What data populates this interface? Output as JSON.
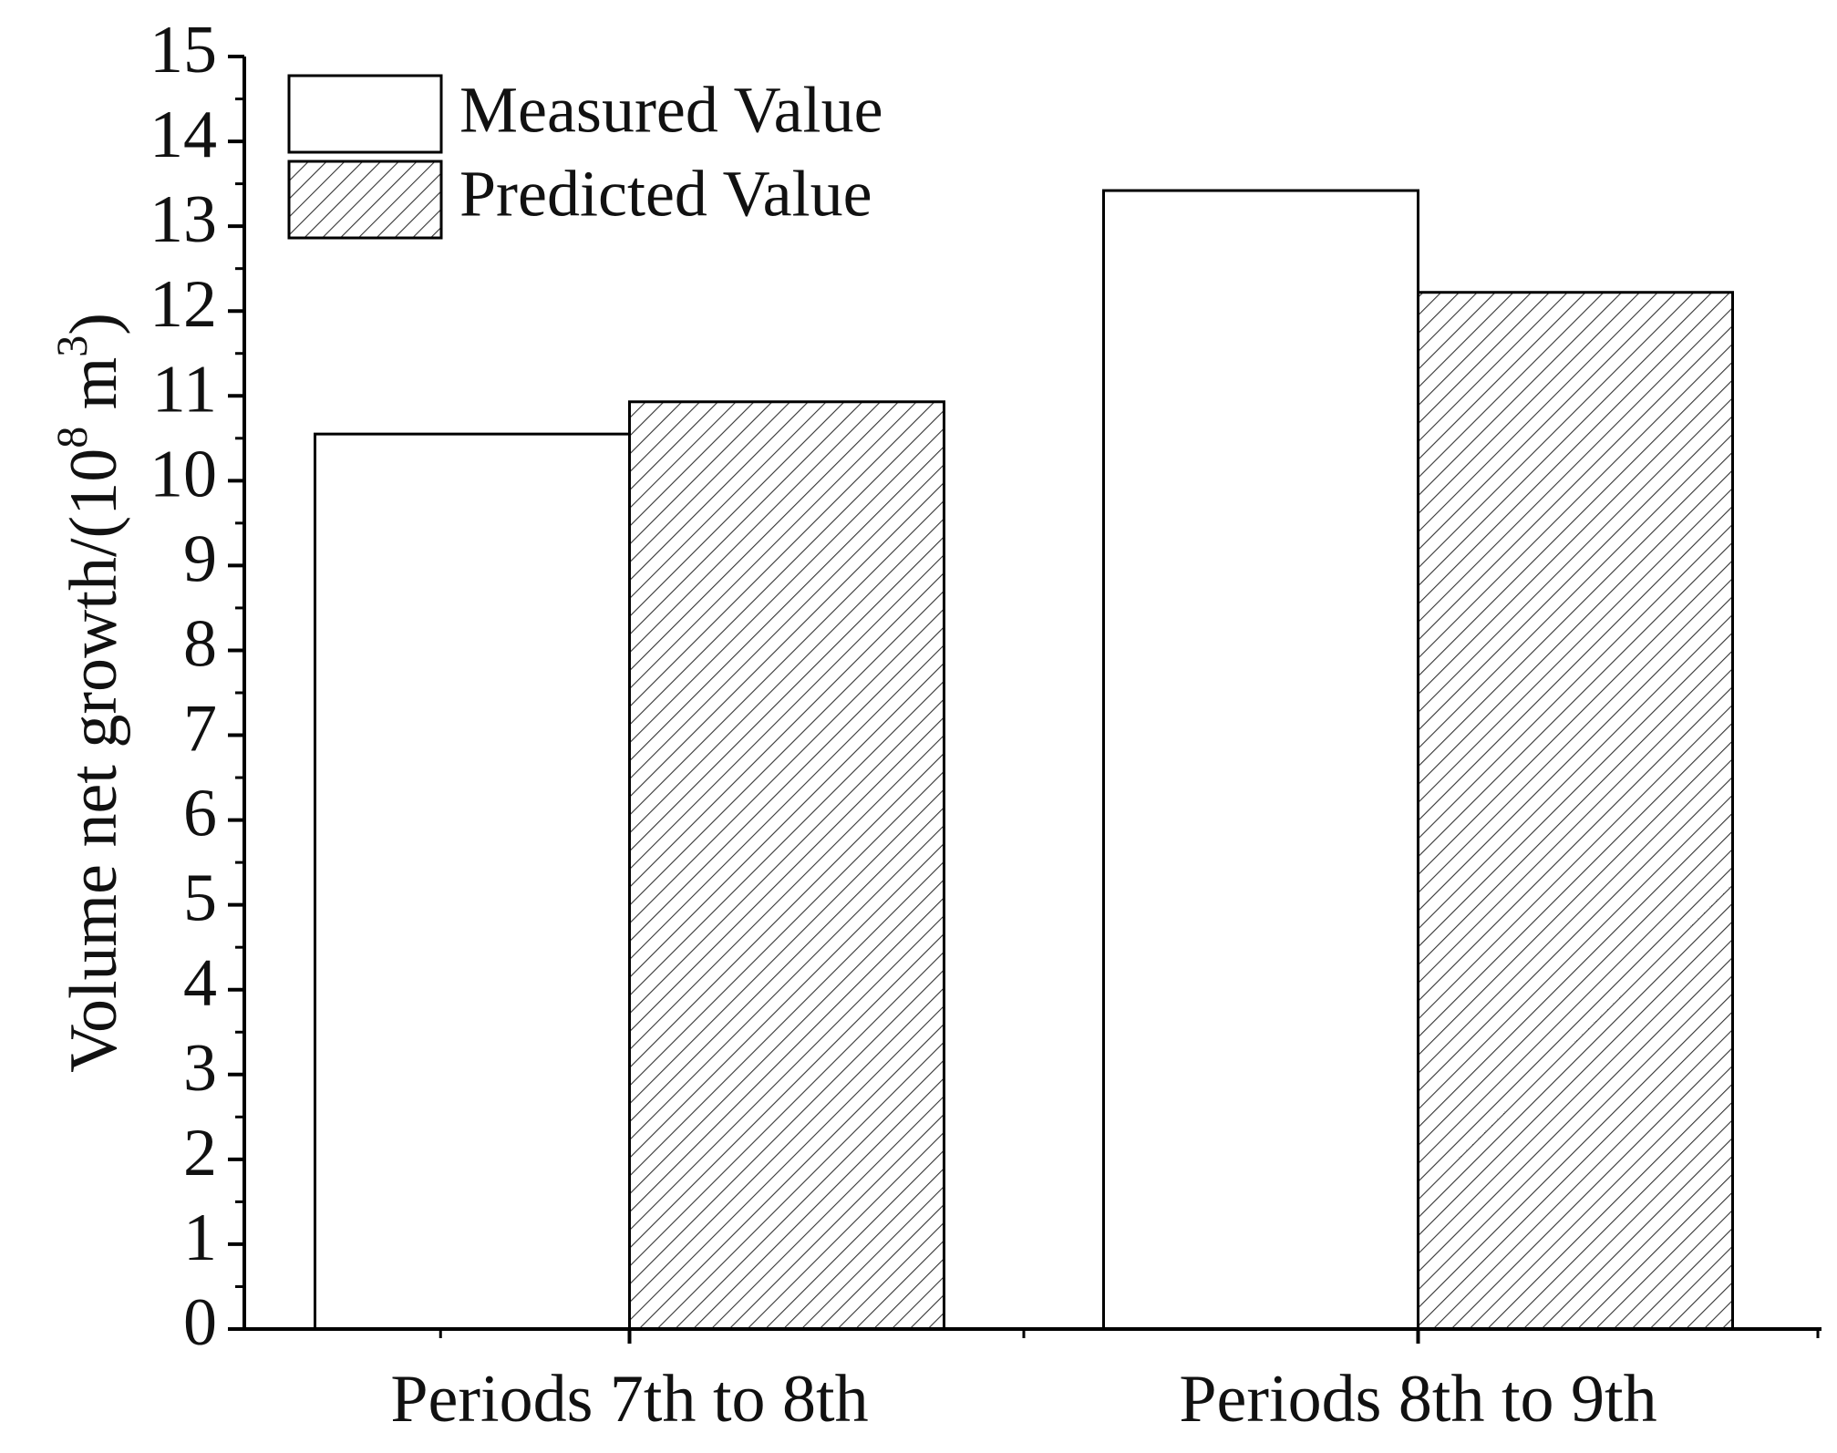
{
  "chart_data": {
    "type": "bar",
    "title": "",
    "xlabel": "",
    "ylabel": {
      "main": "Volume net growth/(10",
      "exp1": "8",
      "middle": " m",
      "exp2": "3",
      "close": ")"
    },
    "categories": [
      "Periods 7th to 8th",
      "Periods 8th to 9th"
    ],
    "series": [
      {
        "name": "Measured Value",
        "values": [
          10.55,
          13.42
        ],
        "fill": "#ffffff",
        "pattern": "none"
      },
      {
        "name": "Predicted Value",
        "values": [
          10.93,
          12.22
        ],
        "fill": "#ffffff",
        "pattern": "hatch"
      }
    ],
    "ylim": [
      0,
      15
    ],
    "yticks": [
      "0",
      "1",
      "2",
      "3",
      "4",
      "5",
      "6",
      "7",
      "8",
      "9",
      "10",
      "11",
      "12",
      "13",
      "14",
      "15"
    ],
    "legend_position": "top-left",
    "grid": false
  }
}
